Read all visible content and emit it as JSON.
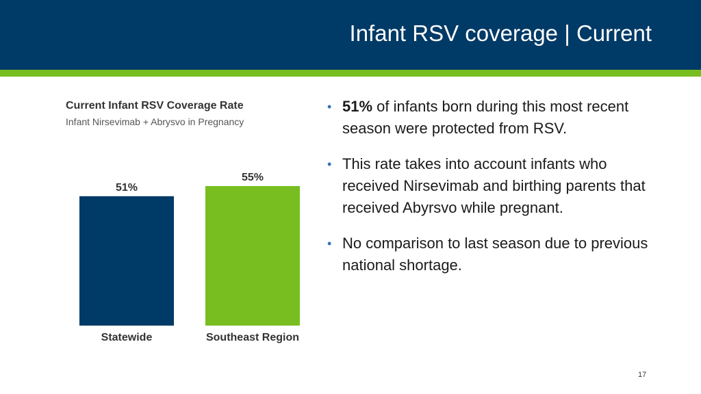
{
  "slide": {
    "title": "Infant RSV coverage | Current",
    "page_number": "17"
  },
  "colors": {
    "header_background": "#003a66",
    "header_accent": "#78be21",
    "bullet_marker": "#2e75b6"
  },
  "bullets": [
    {
      "bold": "51%",
      "text": " of infants born during this most recent season were protected from RSV."
    },
    {
      "bold": "",
      "text": "This rate takes into account infants who received Nirsevimab and birthing parents that received Abyrsvo while pregnant."
    },
    {
      "bold": "",
      "text": "No comparison to last season due to previous national shortage."
    }
  ],
  "chart_data": {
    "type": "bar",
    "title": "Current Infant RSV Coverage Rate",
    "subtitle": "Infant Nirsevimab + Abrysvo in Pregnancy",
    "categories": [
      "Statewide",
      "Southeast Region"
    ],
    "values": [
      51,
      55
    ],
    "value_labels": [
      "51%",
      "55%"
    ],
    "colors": [
      "#003a66",
      "#78be21"
    ],
    "xlabel": "",
    "ylabel": "",
    "ylim": [
      0,
      55
    ],
    "grid": false,
    "legend": "none"
  }
}
